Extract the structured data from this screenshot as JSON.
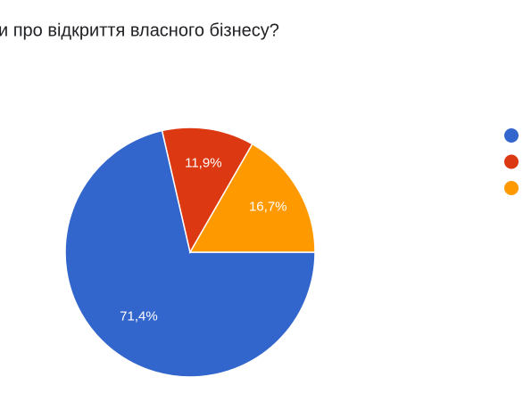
{
  "chart_data": {
    "type": "pie",
    "title": "и про відкриття власного бізнесу?",
    "categories": [
      null,
      null,
      null
    ],
    "values": [
      71.4,
      11.9,
      16.7
    ],
    "value_labels": [
      "71,4%",
      "11,9%",
      "16,7%"
    ],
    "colors": [
      "#3366cc",
      "#dc3912",
      "#ff9900"
    ]
  }
}
